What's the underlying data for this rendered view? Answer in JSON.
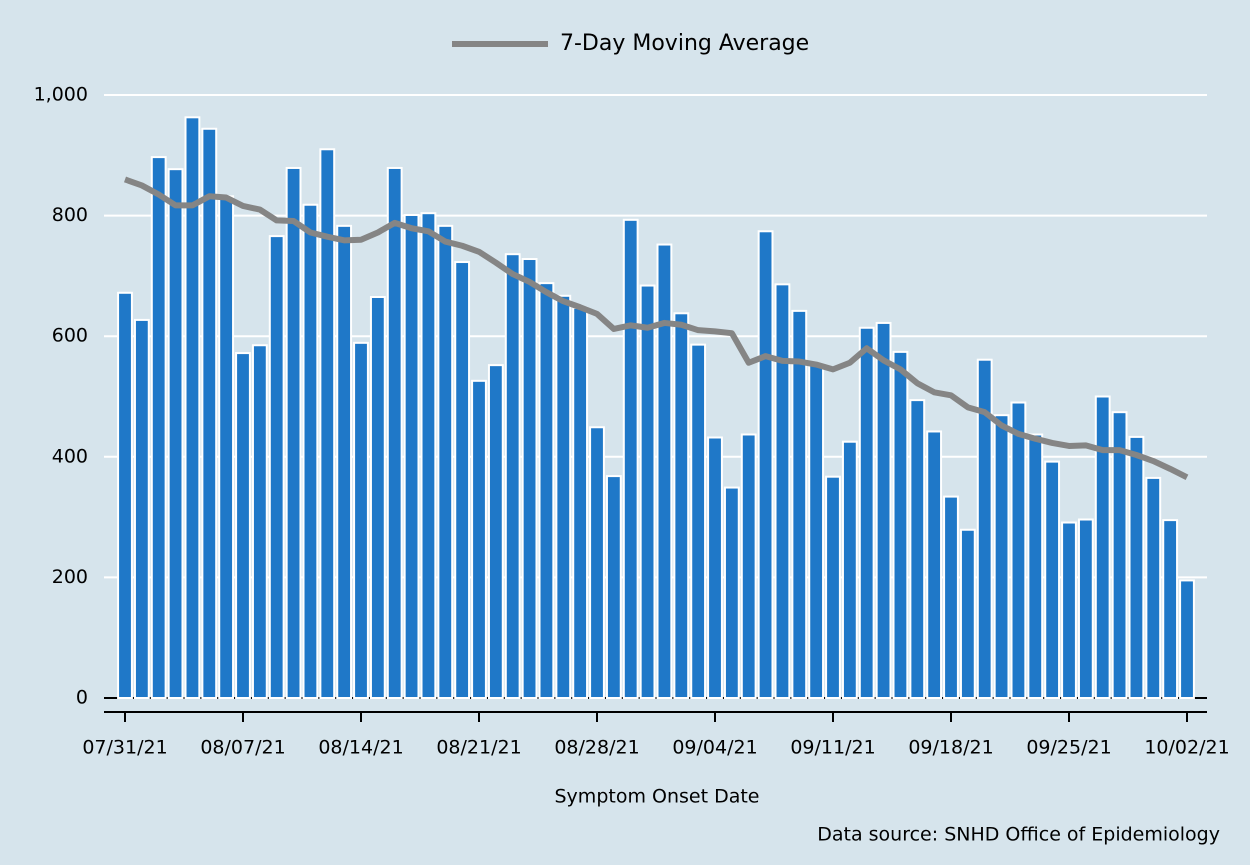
{
  "chart_data": {
    "type": "bar",
    "categories": [
      "07/31/21",
      null,
      null,
      null,
      null,
      null,
      null,
      "08/07/21",
      null,
      null,
      null,
      null,
      null,
      null,
      "08/14/21",
      null,
      null,
      null,
      null,
      null,
      null,
      "08/21/21",
      null,
      null,
      null,
      null,
      null,
      null,
      "08/28/21",
      null,
      null,
      null,
      null,
      null,
      null,
      "09/04/21",
      null,
      null,
      null,
      null,
      null,
      null,
      "09/11/21",
      null,
      null,
      null,
      null,
      null,
      null,
      "09/18/21",
      null,
      null,
      null,
      null,
      null,
      null,
      "09/25/21",
      null,
      null,
      null,
      null,
      null,
      null,
      "10/02/21"
    ],
    "series": [
      {
        "type": "bar",
        "color": "#1f78c8",
        "values": [
          672,
          627,
          897,
          877,
          963,
          944,
          832,
          572,
          585,
          766,
          879,
          818,
          910,
          783,
          589,
          665,
          879,
          801,
          804,
          783,
          723,
          526,
          552,
          736,
          728,
          688,
          667,
          647,
          449,
          368,
          793,
          684,
          752,
          638,
          586,
          432,
          349,
          437,
          774,
          686,
          642,
          552,
          367,
          425,
          614,
          622,
          574,
          494,
          442,
          334,
          279,
          561,
          469,
          490,
          437,
          392,
          291,
          296,
          500,
          474,
          433,
          365,
          295,
          195
        ]
      },
      {
        "type": "line",
        "name": "7-Day Moving Average",
        "color": "#858585",
        "values": [
          860,
          850,
          835,
          817,
          817,
          832,
          830,
          816,
          810,
          792,
          791,
          772,
          765,
          759,
          760,
          772,
          788,
          779,
          774,
          757,
          750,
          740,
          722,
          703,
          690,
          673,
          658,
          648,
          637,
          612,
          618,
          614,
          622,
          619,
          610,
          608,
          605,
          556,
          567,
          559,
          558,
          553,
          545,
          556,
          580,
          560,
          545,
          522,
          507,
          502,
          482,
          474,
          452,
          438,
          430,
          423,
          418,
          419,
          411,
          411,
          403,
          393,
          380,
          366
        ]
      }
    ],
    "x_label": "Symptom Onset Date",
    "source": "Data source: SNHD Office of Epidemiology",
    "ylim": [
      0,
      1000
    ],
    "yticks": [
      0,
      200,
      400,
      600,
      800,
      {
        "value": 1000,
        "label": "1,000"
      }
    ],
    "grid": true,
    "legend": "top"
  }
}
